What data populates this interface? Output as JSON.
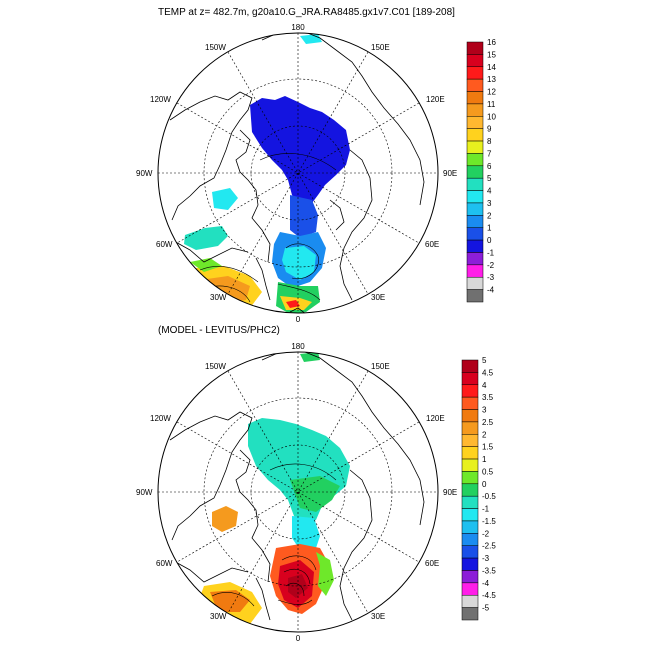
{
  "chart_data": [
    {
      "type": "heatmap",
      "title": "TEMP at z= 482.7m, g20a10.G_JRA.RA8485.gx1v7.C01 [189-208]",
      "projection": "north polar stereographic",
      "longitude_labels": [
        "180",
        "150E",
        "120E",
        "90E",
        "60E",
        "30E",
        "0",
        "30W",
        "60W",
        "90W",
        "120W",
        "150W"
      ],
      "colorbar": {
        "levels": [
          "16",
          "15",
          "14",
          "13",
          "12",
          "11",
          "10",
          "9",
          "8",
          "7",
          "6",
          "5",
          "4",
          "3",
          "2",
          "1",
          "0",
          "-1",
          "-2",
          "-3",
          "-4"
        ],
        "colors": [
          "#b0001a",
          "#d8001e",
          "#ff1a1a",
          "#ff5a1f",
          "#f07a10",
          "#f59a1e",
          "#ffb830",
          "#ffd21e",
          "#e8f01e",
          "#6ee82a",
          "#22d060",
          "#22e0c0",
          "#22e8f0",
          "#1ec0f0",
          "#1a8cf0",
          "#1a50e8",
          "#1414e0",
          "#8c1ed8",
          "#ff1ee8",
          "#d8d8d8",
          "#707070"
        ]
      }
    },
    {
      "type": "heatmap",
      "title": "(MODEL - LEVITUS/PHC2)",
      "projection": "north polar stereographic",
      "longitude_labels": [
        "180",
        "150E",
        "120E",
        "90E",
        "60E",
        "30E",
        "0",
        "30W",
        "60W",
        "90W",
        "120W",
        "150W"
      ],
      "colorbar": {
        "levels": [
          "5",
          "4.5",
          "4",
          "3.5",
          "3",
          "2.5",
          "2",
          "1.5",
          "1",
          "0.5",
          "0",
          "-0.5",
          "-1",
          "-1.5",
          "-2",
          "-2.5",
          "-3",
          "-3.5",
          "-4",
          "-4.5",
          "-5"
        ],
        "colors": [
          "#b0001a",
          "#d8001e",
          "#ff1a1a",
          "#ff5a1f",
          "#f07a10",
          "#f59a1e",
          "#ffb830",
          "#ffd21e",
          "#e8f01e",
          "#6ee82a",
          "#22d060",
          "#22e0c0",
          "#22e8f0",
          "#1ec0f0",
          "#1a8cf0",
          "#1a50e8",
          "#1414e0",
          "#8c1ed8",
          "#ff1ee8",
          "#d8d8d8",
          "#707070"
        ]
      }
    }
  ]
}
